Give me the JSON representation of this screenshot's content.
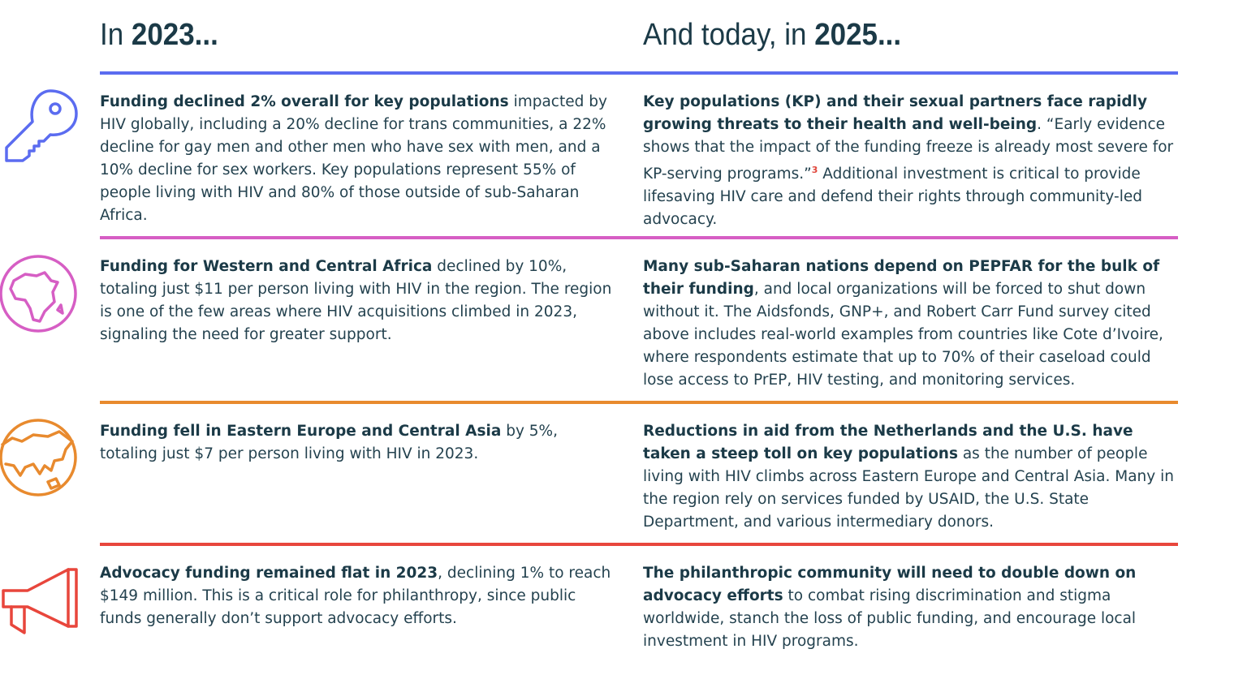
{
  "headings": {
    "left": {
      "prefix": "In ",
      "year": "2023..."
    },
    "right": {
      "prefix": "And today, in ",
      "year": "2025..."
    }
  },
  "colors": {
    "text": "#1b3a47",
    "row1": "#5b6cf0",
    "row2": "#d65ec4",
    "row3": "#e88a2e",
    "row4": "#e8463c"
  },
  "rows": [
    {
      "icon": "key-icon",
      "left": {
        "bold": "Funding declined 2% overall for key populations",
        "text": " impacted by HIV globally, including a 20% decline for trans communities, a 22% decline for gay men and other men who have sex with men, and a 10% decline for sex workers. Key populations represent 55% of people living with HIV and 80% of those outside of sub-Saharan Africa."
      },
      "right": {
        "bold": "Key populations (KP) and their sexual partners face rapidly growing threats to their health and well-being",
        "text": ". “Early evidence shows that the impact of the funding freeze is already most severe for KP-serving programs.”",
        "sup": "3",
        "text2": " Additional investment is critical to provide lifesaving HIV care and defend their rights through community-led advocacy."
      }
    },
    {
      "icon": "africa-globe-icon",
      "left": {
        "bold": "Funding for Western and Central Africa",
        "text": " declined by 10%, totaling just $11 per person living with HIV in the region. The region is one of the few areas where HIV acquisitions climbed in 2023, signaling the need for greater support."
      },
      "right": {
        "bold": "Many sub-Saharan nations depend on PEPFAR for the bulk of their funding",
        "text": ", and local organizations will be forced to shut down without it. The Aidsfonds, GNP+, and Robert Carr Fund survey cited above includes real-world examples from countries like Cote d’Ivoire, where respondents estimate that up to 70% of their caseload could lose access to PrEP, HIV testing, and monitoring services."
      }
    },
    {
      "icon": "eurasia-globe-icon",
      "left": {
        "bold": "Funding fell in Eastern Europe and Central Asia",
        "text": " by 5%, totaling just $7 per person living with HIV in 2023."
      },
      "right": {
        "bold": "Reductions in aid from the Netherlands and the U.S. have taken a steep toll on key populations",
        "text": " as the number of people living with HIV climbs across Eastern Europe and Central Asia. Many in the region rely on services funded by USAID, the U.S. State Department, and various intermediary donors."
      }
    },
    {
      "icon": "megaphone-icon",
      "left": {
        "bold": "Advocacy funding remained flat in 2023",
        "text": ", declining 1% to reach $149 million. This is a critical role for philanthropy, since public funds generally don’t support advocacy efforts."
      },
      "right": {
        "bold": "The philanthropic community will need to double down on advocacy efforts",
        "text": " to combat rising discrimination and stigma worldwide, stanch the loss of public funding, and encourage local investment in HIV programs."
      }
    }
  ]
}
